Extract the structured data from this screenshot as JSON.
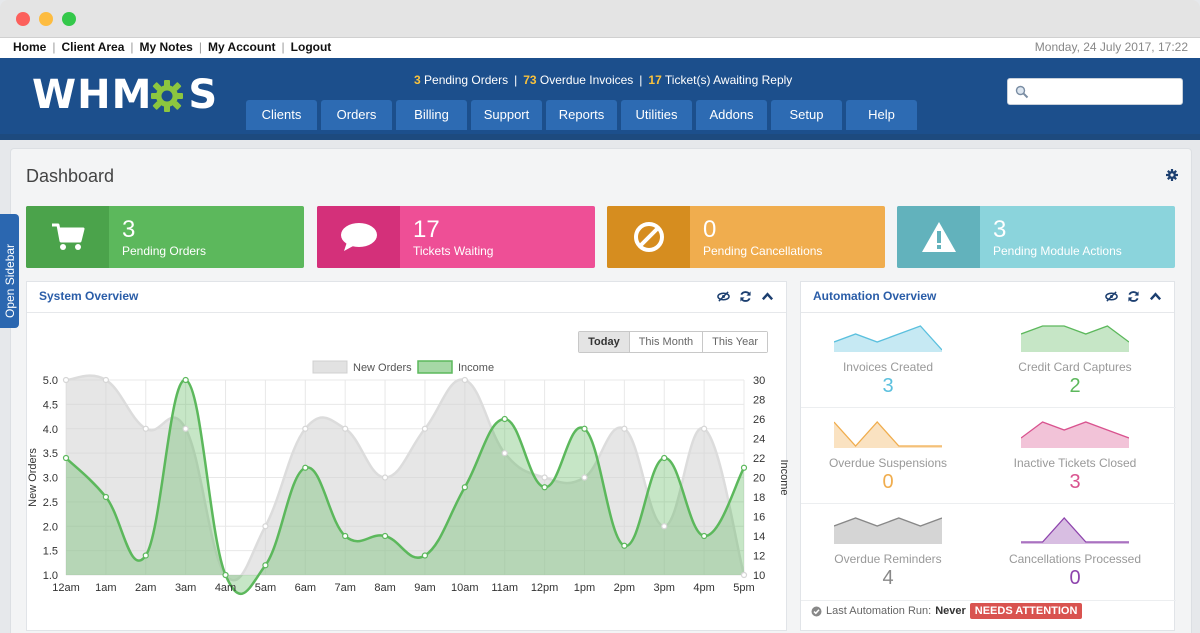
{
  "top_links": [
    "Home",
    "Client Area",
    "My Notes",
    "My Account",
    "Logout"
  ],
  "date_time": "Monday, 24 July 2017, 17:22",
  "logo_text": "WHM S",
  "alerts": {
    "pending_orders_count": "3",
    "pending_orders_label": "Pending Orders",
    "overdue_invoices_count": "73",
    "overdue_invoices_label": "Overdue Invoices",
    "tickets_count": "17",
    "tickets_label": "Ticket(s) Awaiting Reply",
    "separator": "|"
  },
  "search": {
    "placeholder": "",
    "value": ""
  },
  "nav_tabs": [
    "Clients",
    "Orders",
    "Billing",
    "Support",
    "Reports",
    "Utilities",
    "Addons",
    "Setup",
    "Help"
  ],
  "page_title": "Dashboard",
  "open_sidebar": "Open Sidebar",
  "tiles": [
    {
      "icon": "cart-icon",
      "value": "3",
      "label": "Pending Orders"
    },
    {
      "icon": "chat-bubble-icon",
      "value": "17",
      "label": "Tickets Waiting"
    },
    {
      "icon": "ban-icon",
      "value": "0",
      "label": "Pending Cancellations"
    },
    {
      "icon": "warning-icon",
      "value": "3",
      "label": "Pending Module Actions"
    }
  ],
  "system_overview": {
    "title": "System Overview",
    "range_buttons": [
      "Today",
      "This Month",
      "This Year"
    ],
    "selected_range": "Today"
  },
  "chart_data": {
    "type": "area",
    "x": [
      "12am",
      "1am",
      "2am",
      "3am",
      "4am",
      "5am",
      "6am",
      "7am",
      "8am",
      "9am",
      "10am",
      "11am",
      "12pm",
      "1pm",
      "2pm",
      "3pm",
      "4pm",
      "5pm"
    ],
    "series": [
      {
        "name": "New Orders",
        "axis": "left",
        "color": "#e0e0e0",
        "values": [
          5.0,
          5.0,
          4.0,
          4.0,
          1.0,
          2.0,
          4.0,
          4.0,
          3.0,
          4.0,
          5.0,
          3.5,
          3.0,
          3.0,
          4.0,
          2.0,
          4.0,
          1.0
        ]
      },
      {
        "name": "Income",
        "axis": "right",
        "color": "#5cb85c",
        "values": [
          22,
          18,
          12,
          30,
          10,
          11,
          21,
          14,
          14,
          12,
          19,
          26,
          19,
          25,
          13,
          22,
          14,
          21
        ]
      }
    ],
    "ylabel": "New Orders",
    "ylim": [
      1.0,
      5.0
    ],
    "y_ticks": [
      "1.0",
      "1.5",
      "2.0",
      "2.5",
      "3.0",
      "3.5",
      "4.0",
      "4.5",
      "5.0"
    ],
    "y2label": "Income",
    "y2lim": [
      10,
      30
    ],
    "y2_ticks": [
      "10",
      "12",
      "14",
      "16",
      "18",
      "20",
      "22",
      "24",
      "26",
      "28",
      "30"
    ],
    "grid": true,
    "legend": "top"
  },
  "automation": {
    "title": "Automation Overview",
    "items": [
      {
        "label": "Invoices Created",
        "value": "3",
        "color": "#5bc0de",
        "spark": [
          1,
          2,
          1,
          2,
          3,
          0
        ]
      },
      {
        "label": "Credit Card Captures",
        "value": "2",
        "color": "#5cb85c",
        "spark": [
          2,
          3,
          3,
          2,
          3,
          1
        ]
      },
      {
        "label": "Overdue Suspensions",
        "value": "0",
        "color": "#f0ad4e",
        "spark": [
          3,
          0,
          3,
          0,
          0,
          0
        ]
      },
      {
        "label": "Inactive Tickets Closed",
        "value": "3",
        "color": "#d9538f",
        "spark": [
          1,
          3,
          2,
          3,
          2,
          1
        ]
      },
      {
        "label": "Overdue Reminders",
        "value": "4",
        "color": "#888888",
        "spark": [
          2,
          3,
          2,
          3,
          2,
          3
        ]
      },
      {
        "label": "Cancellations Processed",
        "value": "0",
        "color": "#8e44ad",
        "spark": [
          0,
          0,
          3,
          0,
          0,
          0
        ]
      }
    ],
    "footer_label": "Last Automation Run:",
    "footer_value": "Never",
    "footer_badge": "NEEDS ATTENTION"
  }
}
